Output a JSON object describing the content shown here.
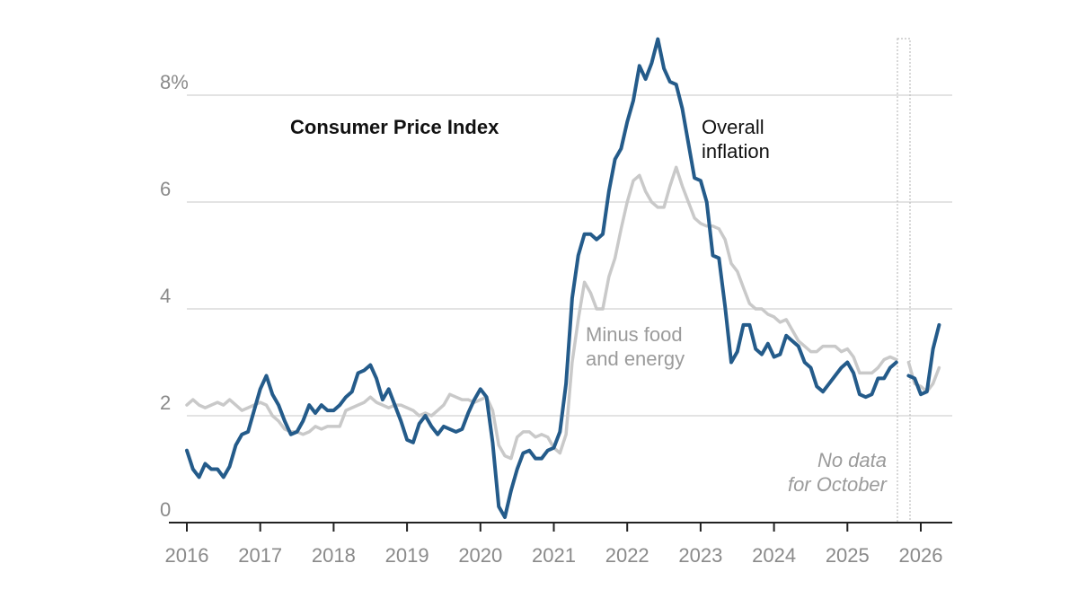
{
  "chart_data": {
    "type": "line",
    "title": "Consumer Price Index",
    "y_unit": "%",
    "ylim": [
      0,
      9
    ],
    "xlim": [
      2016,
      2026.5
    ],
    "grid": "horizontal",
    "y_ticks": [
      {
        "value": 0,
        "label": "0"
      },
      {
        "value": 2,
        "label": "2"
      },
      {
        "value": 4,
        "label": "4"
      },
      {
        "value": 6,
        "label": "6"
      },
      {
        "value": 8,
        "label": "8%"
      }
    ],
    "x_ticks": [
      "2016",
      "2017",
      "2018",
      "2019",
      "2020",
      "2021",
      "2022",
      "2023",
      "2024",
      "2025",
      "2026"
    ],
    "annotations": {
      "no_data_line1": "No data",
      "no_data_line2": "for October"
    },
    "series": [
      {
        "name_line1": "Overall",
        "name_line2": "inflation",
        "color": "#245b8a",
        "points": [
          [
            2016.0,
            1.35
          ],
          [
            2016.083,
            1.0
          ],
          [
            2016.167,
            0.85
          ],
          [
            2016.25,
            1.1
          ],
          [
            2016.333,
            1.0
          ],
          [
            2016.417,
            1.0
          ],
          [
            2016.5,
            0.85
          ],
          [
            2016.583,
            1.05
          ],
          [
            2016.667,
            1.45
          ],
          [
            2016.75,
            1.65
          ],
          [
            2016.833,
            1.7
          ],
          [
            2016.917,
            2.1
          ],
          [
            2017.0,
            2.5
          ],
          [
            2017.083,
            2.75
          ],
          [
            2017.167,
            2.4
          ],
          [
            2017.25,
            2.2
          ],
          [
            2017.333,
            1.9
          ],
          [
            2017.417,
            1.65
          ],
          [
            2017.5,
            1.7
          ],
          [
            2017.583,
            1.9
          ],
          [
            2017.667,
            2.2
          ],
          [
            2017.75,
            2.05
          ],
          [
            2017.833,
            2.2
          ],
          [
            2017.917,
            2.1
          ],
          [
            2018.0,
            2.1
          ],
          [
            2018.083,
            2.2
          ],
          [
            2018.167,
            2.35
          ],
          [
            2018.25,
            2.45
          ],
          [
            2018.333,
            2.8
          ],
          [
            2018.417,
            2.85
          ],
          [
            2018.5,
            2.95
          ],
          [
            2018.583,
            2.7
          ],
          [
            2018.667,
            2.3
          ],
          [
            2018.75,
            2.5
          ],
          [
            2018.833,
            2.2
          ],
          [
            2018.917,
            1.9
          ],
          [
            2019.0,
            1.55
          ],
          [
            2019.083,
            1.5
          ],
          [
            2019.167,
            1.85
          ],
          [
            2019.25,
            2.0
          ],
          [
            2019.333,
            1.8
          ],
          [
            2019.417,
            1.65
          ],
          [
            2019.5,
            1.8
          ],
          [
            2019.583,
            1.75
          ],
          [
            2019.667,
            1.7
          ],
          [
            2019.75,
            1.75
          ],
          [
            2019.833,
            2.05
          ],
          [
            2019.917,
            2.3
          ],
          [
            2020.0,
            2.5
          ],
          [
            2020.083,
            2.35
          ],
          [
            2020.167,
            1.5
          ],
          [
            2020.25,
            0.3
          ],
          [
            2020.333,
            0.1
          ],
          [
            2020.417,
            0.6
          ],
          [
            2020.5,
            1.0
          ],
          [
            2020.583,
            1.3
          ],
          [
            2020.667,
            1.35
          ],
          [
            2020.75,
            1.2
          ],
          [
            2020.833,
            1.2
          ],
          [
            2020.917,
            1.35
          ],
          [
            2021.0,
            1.4
          ],
          [
            2021.083,
            1.7
          ],
          [
            2021.167,
            2.6
          ],
          [
            2021.25,
            4.2
          ],
          [
            2021.333,
            5.0
          ],
          [
            2021.417,
            5.4
          ],
          [
            2021.5,
            5.4
          ],
          [
            2021.583,
            5.3
          ],
          [
            2021.667,
            5.4
          ],
          [
            2021.75,
            6.2
          ],
          [
            2021.833,
            6.8
          ],
          [
            2021.917,
            7.0
          ],
          [
            2022.0,
            7.5
          ],
          [
            2022.083,
            7.9
          ],
          [
            2022.167,
            8.55
          ],
          [
            2022.25,
            8.3
          ],
          [
            2022.333,
            8.6
          ],
          [
            2022.417,
            9.05
          ],
          [
            2022.5,
            8.5
          ],
          [
            2022.583,
            8.25
          ],
          [
            2022.667,
            8.2
          ],
          [
            2022.75,
            7.75
          ],
          [
            2022.833,
            7.1
          ],
          [
            2022.917,
            6.45
          ],
          [
            2023.0,
            6.4
          ],
          [
            2023.083,
            6.0
          ],
          [
            2023.167,
            5.0
          ],
          [
            2023.25,
            4.95
          ],
          [
            2023.333,
            4.05
          ],
          [
            2023.417,
            3.0
          ],
          [
            2023.5,
            3.2
          ],
          [
            2023.583,
            3.7
          ],
          [
            2023.667,
            3.7
          ],
          [
            2023.75,
            3.25
          ],
          [
            2023.833,
            3.15
          ],
          [
            2023.917,
            3.35
          ],
          [
            2024.0,
            3.1
          ],
          [
            2024.083,
            3.15
          ],
          [
            2024.167,
            3.5
          ],
          [
            2024.25,
            3.4
          ],
          [
            2024.333,
            3.3
          ],
          [
            2024.417,
            3.0
          ],
          [
            2024.5,
            2.9
          ],
          [
            2024.583,
            2.55
          ],
          [
            2024.667,
            2.45
          ],
          [
            2024.75,
            2.6
          ],
          [
            2024.833,
            2.75
          ],
          [
            2024.917,
            2.9
          ],
          [
            2025.0,
            3.0
          ],
          [
            2025.083,
            2.8
          ],
          [
            2025.167,
            2.4
          ],
          [
            2025.25,
            2.35
          ],
          [
            2025.333,
            2.4
          ],
          [
            2025.417,
            2.7
          ],
          [
            2025.5,
            2.7
          ],
          [
            2025.583,
            2.9
          ],
          [
            2025.667,
            3.0
          ],
          null,
          [
            2025.833,
            2.75
          ],
          [
            2025.917,
            2.7
          ],
          [
            2026.0,
            2.4
          ],
          [
            2026.083,
            2.45
          ],
          [
            2026.167,
            3.25
          ],
          [
            2026.25,
            3.7
          ]
        ]
      },
      {
        "name_line1": "Minus food",
        "name_line2": "and energy",
        "color": "#c9c9c9",
        "points": [
          [
            2016.0,
            2.2
          ],
          [
            2016.083,
            2.3
          ],
          [
            2016.167,
            2.2
          ],
          [
            2016.25,
            2.15
          ],
          [
            2016.333,
            2.2
          ],
          [
            2016.417,
            2.25
          ],
          [
            2016.5,
            2.2
          ],
          [
            2016.583,
            2.3
          ],
          [
            2016.667,
            2.2
          ],
          [
            2016.75,
            2.1
          ],
          [
            2016.833,
            2.15
          ],
          [
            2016.917,
            2.2
          ],
          [
            2017.0,
            2.25
          ],
          [
            2017.083,
            2.2
          ],
          [
            2017.167,
            2.0
          ],
          [
            2017.25,
            1.9
          ],
          [
            2017.333,
            1.75
          ],
          [
            2017.417,
            1.7
          ],
          [
            2017.5,
            1.7
          ],
          [
            2017.583,
            1.65
          ],
          [
            2017.667,
            1.7
          ],
          [
            2017.75,
            1.8
          ],
          [
            2017.833,
            1.75
          ],
          [
            2017.917,
            1.8
          ],
          [
            2018.0,
            1.8
          ],
          [
            2018.083,
            1.8
          ],
          [
            2018.167,
            2.1
          ],
          [
            2018.25,
            2.15
          ],
          [
            2018.333,
            2.2
          ],
          [
            2018.417,
            2.25
          ],
          [
            2018.5,
            2.35
          ],
          [
            2018.583,
            2.25
          ],
          [
            2018.667,
            2.2
          ],
          [
            2018.75,
            2.15
          ],
          [
            2018.833,
            2.2
          ],
          [
            2018.917,
            2.2
          ],
          [
            2019.0,
            2.15
          ],
          [
            2019.083,
            2.1
          ],
          [
            2019.167,
            2.0
          ],
          [
            2019.25,
            2.05
          ],
          [
            2019.333,
            2.0
          ],
          [
            2019.417,
            2.1
          ],
          [
            2019.5,
            2.2
          ],
          [
            2019.583,
            2.4
          ],
          [
            2019.667,
            2.35
          ],
          [
            2019.75,
            2.3
          ],
          [
            2019.833,
            2.3
          ],
          [
            2019.917,
            2.25
          ],
          [
            2020.0,
            2.3
          ],
          [
            2020.083,
            2.35
          ],
          [
            2020.167,
            2.1
          ],
          [
            2020.25,
            1.45
          ],
          [
            2020.333,
            1.25
          ],
          [
            2020.417,
            1.2
          ],
          [
            2020.5,
            1.6
          ],
          [
            2020.583,
            1.7
          ],
          [
            2020.667,
            1.7
          ],
          [
            2020.75,
            1.6
          ],
          [
            2020.833,
            1.65
          ],
          [
            2020.917,
            1.6
          ],
          [
            2021.0,
            1.4
          ],
          [
            2021.083,
            1.3
          ],
          [
            2021.167,
            1.65
          ],
          [
            2021.25,
            3.0
          ],
          [
            2021.333,
            3.8
          ],
          [
            2021.417,
            4.5
          ],
          [
            2021.5,
            4.3
          ],
          [
            2021.583,
            4.0
          ],
          [
            2021.667,
            4.0
          ],
          [
            2021.75,
            4.6
          ],
          [
            2021.833,
            4.95
          ],
          [
            2021.917,
            5.5
          ],
          [
            2022.0,
            6.0
          ],
          [
            2022.083,
            6.4
          ],
          [
            2022.167,
            6.5
          ],
          [
            2022.25,
            6.2
          ],
          [
            2022.333,
            6.0
          ],
          [
            2022.417,
            5.9
          ],
          [
            2022.5,
            5.9
          ],
          [
            2022.583,
            6.3
          ],
          [
            2022.667,
            6.65
          ],
          [
            2022.75,
            6.3
          ],
          [
            2022.833,
            6.0
          ],
          [
            2022.917,
            5.7
          ],
          [
            2023.0,
            5.6
          ],
          [
            2023.083,
            5.55
          ],
          [
            2023.167,
            5.55
          ],
          [
            2023.25,
            5.5
          ],
          [
            2023.333,
            5.3
          ],
          [
            2023.417,
            4.85
          ],
          [
            2023.5,
            4.7
          ],
          [
            2023.583,
            4.4
          ],
          [
            2023.667,
            4.1
          ],
          [
            2023.75,
            4.0
          ],
          [
            2023.833,
            4.0
          ],
          [
            2023.917,
            3.9
          ],
          [
            2024.0,
            3.85
          ],
          [
            2024.083,
            3.75
          ],
          [
            2024.167,
            3.8
          ],
          [
            2024.25,
            3.6
          ],
          [
            2024.333,
            3.4
          ],
          [
            2024.417,
            3.3
          ],
          [
            2024.5,
            3.2
          ],
          [
            2024.583,
            3.2
          ],
          [
            2024.667,
            3.3
          ],
          [
            2024.75,
            3.3
          ],
          [
            2024.833,
            3.3
          ],
          [
            2024.917,
            3.2
          ],
          [
            2025.0,
            3.25
          ],
          [
            2025.083,
            3.1
          ],
          [
            2025.167,
            2.8
          ],
          [
            2025.25,
            2.8
          ],
          [
            2025.333,
            2.8
          ],
          [
            2025.417,
            2.9
          ],
          [
            2025.5,
            3.05
          ],
          [
            2025.583,
            3.1
          ],
          [
            2025.667,
            3.05
          ],
          null,
          [
            2025.833,
            3.0
          ],
          [
            2025.917,
            2.6
          ],
          [
            2026.0,
            2.55
          ],
          [
            2026.083,
            2.45
          ],
          [
            2026.167,
            2.6
          ],
          [
            2026.25,
            2.9
          ]
        ]
      }
    ]
  }
}
